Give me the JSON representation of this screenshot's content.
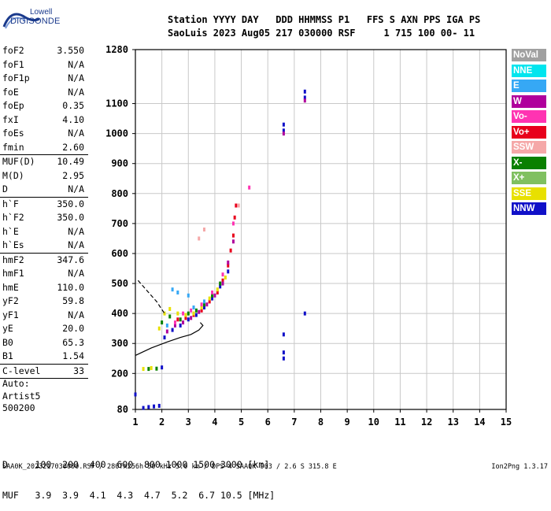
{
  "logo": {
    "line1": "Lowell",
    "line2": "DIGISONDE"
  },
  "header": {
    "line1": "Station YYYY DAY   DDD HHMMSS P1   FFS S AXN PPS IGA PS",
    "line2": "SaoLuis 2023 Aug05 217 030000 RSF     1 715 100 00- 11"
  },
  "params": [
    {
      "label": "foF2",
      "value": "3.550"
    },
    {
      "label": "foF1",
      "value": "N/A"
    },
    {
      "label": "foF1p",
      "value": "N/A"
    },
    {
      "label": "foE",
      "value": "N/A"
    },
    {
      "label": "foEp",
      "value": "0.35"
    },
    {
      "label": "fxI",
      "value": "4.10"
    },
    {
      "label": "foEs",
      "value": "N/A"
    },
    {
      "label": "fmin",
      "value": "2.60",
      "sep_after": true
    },
    {
      "label": "MUF(D)",
      "value": "10.49"
    },
    {
      "label": "M(D)",
      "value": "2.95"
    },
    {
      "label": "D",
      "value": "N/A",
      "sep_after": true
    },
    {
      "label": "h`F",
      "value": "350.0"
    },
    {
      "label": "h`F2",
      "value": "350.0"
    },
    {
      "label": "h`E",
      "value": "N/A"
    },
    {
      "label": "h`Es",
      "value": "N/A",
      "sep_after": true
    },
    {
      "label": "hmF2",
      "value": "347.6"
    },
    {
      "label": "hmF1",
      "value": "N/A"
    },
    {
      "label": "hmE",
      "value": "110.0"
    },
    {
      "label": "yF2",
      "value": "59.8"
    },
    {
      "label": "yF1",
      "value": "N/A"
    },
    {
      "label": "yE",
      "value": "20.0"
    },
    {
      "label": "B0",
      "value": "65.3"
    },
    {
      "label": "B1",
      "value": "1.54",
      "sep_after": true
    },
    {
      "label": "C-level",
      "value": "33",
      "sep_after": true
    }
  ],
  "autoscale": [
    "Auto:",
    "Artist5",
    "500200"
  ],
  "legend": [
    {
      "label": "NoVal",
      "color": "#a0a0a0"
    },
    {
      "label": "NNE",
      "color": "#00e5ee"
    },
    {
      "label": "E",
      "color": "#36a8f5"
    },
    {
      "label": "W",
      "color": "#b0009c"
    },
    {
      "label": "Vo-",
      "color": "#ff33b2"
    },
    {
      "label": "Vo+",
      "color": "#e8001c"
    },
    {
      "label": "SSW",
      "color": "#f5a8a8"
    },
    {
      "label": "X-",
      "color": "#0a8000"
    },
    {
      "label": "X+",
      "color": "#80c060"
    },
    {
      "label": "SSE",
      "color": "#e8e000"
    },
    {
      "label": "NNW",
      "color": "#1010c8"
    }
  ],
  "muf_table": {
    "line1": "D     100  200  400  600  800 1000 1500 3000 [km]",
    "line2": "MUF   3.9  3.9  4.1  4.3  4.7  5.2  6.7 10.5 [MHz]"
  },
  "footer": {
    "left": "SAA0K_2023217030000.RSF / 280fx256h 50 kHz 5.0 km / DPS-4 SAA0K 903 / 2.6 S 315.8 E",
    "right": "Ion2Png 1.3.17"
  },
  "chart_data": {
    "type": "scatter",
    "title": "",
    "xlabel": "",
    "ylabel": "",
    "xlim": [
      1,
      15
    ],
    "ylim": [
      80,
      1280
    ],
    "x_ticks": [
      1,
      2,
      3,
      4,
      5,
      6,
      7,
      8,
      9,
      10,
      11,
      12,
      13,
      14,
      15
    ],
    "y_ticks": [
      80,
      200,
      300,
      400,
      500,
      600,
      700,
      800,
      900,
      1000,
      1100,
      1280
    ],
    "grid": true,
    "series": [
      {
        "color": "#1010c8",
        "points": [
          [
            1.0,
            130
          ],
          [
            1.3,
            85
          ],
          [
            1.5,
            88
          ],
          [
            1.7,
            90
          ],
          [
            1.9,
            92
          ],
          [
            2.0,
            220
          ],
          [
            6.6,
            1010
          ],
          [
            6.6,
            1030
          ],
          [
            6.6,
            330
          ],
          [
            6.6,
            270
          ],
          [
            6.6,
            250
          ],
          [
            7.4,
            1120
          ],
          [
            7.4,
            1140
          ],
          [
            7.4,
            400
          ],
          [
            2.1,
            320
          ],
          [
            2.4,
            345
          ],
          [
            2.7,
            360
          ],
          [
            3.0,
            380
          ],
          [
            3.3,
            395
          ],
          [
            3.6,
            420
          ],
          [
            3.9,
            450
          ],
          [
            4.2,
            490
          ],
          [
            4.5,
            540
          ]
        ]
      },
      {
        "color": "#e8001c",
        "points": [
          [
            2.6,
            380
          ],
          [
            2.9,
            385
          ],
          [
            3.2,
            395
          ],
          [
            3.5,
            410
          ],
          [
            3.8,
            440
          ],
          [
            4.1,
            470
          ],
          [
            4.3,
            510
          ],
          [
            4.5,
            560
          ],
          [
            4.6,
            610
          ],
          [
            4.7,
            660
          ],
          [
            4.75,
            720
          ],
          [
            4.8,
            760
          ]
        ]
      },
      {
        "color": "#b0009c",
        "points": [
          [
            2.2,
            340
          ],
          [
            2.5,
            360
          ],
          [
            2.8,
            370
          ],
          [
            3.1,
            385
          ],
          [
            3.4,
            405
          ],
          [
            3.7,
            430
          ],
          [
            4.0,
            460
          ],
          [
            4.3,
            500
          ],
          [
            4.5,
            570
          ],
          [
            4.7,
            640
          ],
          [
            6.6,
            1000
          ],
          [
            7.4,
            1110
          ]
        ]
      },
      {
        "color": "#e8e000",
        "points": [
          [
            1.9,
            350
          ],
          [
            2.1,
            400
          ],
          [
            2.3,
            415
          ],
          [
            2.6,
            400
          ],
          [
            2.9,
            395
          ],
          [
            3.2,
            400
          ],
          [
            3.5,
            420
          ],
          [
            3.8,
            450
          ],
          [
            4.1,
            480
          ],
          [
            4.4,
            520
          ],
          [
            1.3,
            215
          ],
          [
            1.6,
            218
          ]
        ]
      },
      {
        "color": "#0a8000",
        "points": [
          [
            2.0,
            370
          ],
          [
            2.3,
            390
          ],
          [
            2.7,
            380
          ],
          [
            3.0,
            400
          ],
          [
            3.3,
            410
          ],
          [
            3.6,
            430
          ],
          [
            3.9,
            460
          ],
          [
            4.2,
            500
          ],
          [
            1.5,
            215
          ],
          [
            1.8,
            216
          ]
        ]
      },
      {
        "color": "#36a8f5",
        "points": [
          [
            2.2,
            360
          ],
          [
            2.4,
            480
          ],
          [
            2.6,
            470
          ],
          [
            3.0,
            460
          ],
          [
            3.2,
            420
          ],
          [
            3.6,
            440
          ]
        ]
      },
      {
        "color": "#ff33b2",
        "points": [
          [
            2.5,
            370
          ],
          [
            2.8,
            400
          ],
          [
            3.1,
            410
          ],
          [
            3.5,
            430
          ],
          [
            3.9,
            470
          ],
          [
            4.3,
            530
          ],
          [
            4.7,
            700
          ],
          [
            5.3,
            820
          ]
        ]
      },
      {
        "color": "#f5a8a8",
        "points": [
          [
            3.4,
            650
          ],
          [
            3.6,
            680
          ],
          [
            4.9,
            760
          ]
        ]
      }
    ],
    "curves": [
      {
        "style": "solid",
        "points": [
          [
            1.0,
            260
          ],
          [
            1.6,
            285
          ],
          [
            2.2,
            305
          ],
          [
            2.7,
            320
          ],
          [
            3.1,
            330
          ],
          [
            3.4,
            345
          ],
          [
            3.55,
            360
          ],
          [
            3.45,
            370
          ]
        ]
      },
      {
        "style": "dashed",
        "points": [
          [
            1.1,
            510
          ],
          [
            1.5,
            470
          ],
          [
            1.8,
            440
          ],
          [
            2.1,
            400
          ]
        ]
      }
    ]
  }
}
